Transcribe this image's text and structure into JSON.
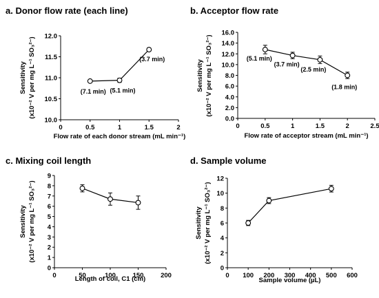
{
  "chart_data": [
    {
      "type": "line",
      "title": "a. Donor flow rate (each line)",
      "xlabel": "Flow rate of each donor stream (mL min⁻¹)",
      "ylabel": [
        "Sensitivity",
        "(x10⁻² V per mg L⁻¹ SO₃²⁻)"
      ],
      "xlim": [
        0,
        2
      ],
      "xticks": [
        0,
        0.5,
        1,
        1.5,
        2
      ],
      "xtick_labels": [
        "0",
        "0.5",
        "1",
        "1.5",
        "2"
      ],
      "ylim": [
        10.0,
        12.0
      ],
      "yticks": [
        10.0,
        10.5,
        11.0,
        11.5,
        12.0
      ],
      "ytick_labels": [
        "10.0",
        "10.5",
        "11.0",
        "11.5",
        "12.0"
      ],
      "grid": false,
      "series": [
        {
          "x": [
            0.5,
            1,
            1.5
          ],
          "y": [
            10.92,
            10.94,
            11.67
          ],
          "err": [
            0.02,
            0.05,
            0.04
          ],
          "labels": [
            "(7.1 min)",
            "(5.1 min)",
            "(3.7 min)"
          ]
        }
      ]
    },
    {
      "type": "line",
      "title": "b. Acceptor flow rate",
      "xlabel": "Flow rate of acceptor stream (mL min⁻¹)",
      "ylabel": [
        "Sensitivity",
        "(x10⁻² V per mg L⁻¹ SO₃²⁻)"
      ],
      "xlim": [
        0,
        2.5
      ],
      "xticks": [
        0,
        0.5,
        1,
        1.5,
        2,
        2.5
      ],
      "xtick_labels": [
        "0",
        "0.5",
        "1",
        "1.5",
        "2",
        "2.5"
      ],
      "ylim": [
        0,
        16
      ],
      "yticks": [
        0,
        2,
        4,
        6,
        8,
        10,
        12,
        14,
        16
      ],
      "ytick_labels": [
        "0.0",
        "2.0",
        "4.0",
        "6.0",
        "8.0",
        "10.0",
        "12.0",
        "14.0",
        "16.0"
      ],
      "grid": false,
      "series": [
        {
          "x": [
            0.5,
            1,
            1.5,
            2
          ],
          "y": [
            12.8,
            11.7,
            10.9,
            8.0
          ],
          "err": [
            0.8,
            0.6,
            0.7,
            0.6
          ],
          "labels": [
            "(5.1 min)",
            "(3.7 min)",
            "(2.5 min)",
            "(1.8 min)"
          ]
        }
      ]
    },
    {
      "type": "line",
      "title": "c. Mixing coil length",
      "xlabel": "Length of coil, C1 (cm)",
      "ylabel": [
        "Sensitivity",
        "(x10⁻² V per mg L⁻¹ SO₃²⁻)"
      ],
      "xlim": [
        0,
        200
      ],
      "xticks": [
        0,
        50,
        100,
        150,
        200
      ],
      "xtick_labels": [
        "0",
        "50",
        "100",
        "150",
        "200"
      ],
      "ylim": [
        0,
        9
      ],
      "yticks": [
        0,
        1,
        2,
        3,
        4,
        5,
        6,
        7,
        8,
        9
      ],
      "ytick_labels": [
        "0",
        "1",
        "2",
        "3",
        "4",
        "5",
        "6",
        "7",
        "8",
        "9"
      ],
      "grid": false,
      "series": [
        {
          "x": [
            50,
            100,
            150
          ],
          "y": [
            7.75,
            6.7,
            6.35
          ],
          "err": [
            0.35,
            0.6,
            0.65
          ]
        }
      ]
    },
    {
      "type": "line",
      "title": "d. Sample volume",
      "xlabel": "Sample volume (µL)",
      "ylabel": [
        "Sensitivity",
        "(x10⁻² V per mg L⁻¹ SO₃²⁻)"
      ],
      "xlim": [
        0,
        600
      ],
      "xticks": [
        0,
        100,
        200,
        300,
        400,
        500,
        600
      ],
      "xtick_labels": [
        "0",
        "100",
        "200",
        "300",
        "400",
        "500",
        "600"
      ],
      "ylim": [
        0,
        12
      ],
      "yticks": [
        0,
        2,
        4,
        6,
        8,
        10,
        12
      ],
      "ytick_labels": [
        "0",
        "2",
        "4",
        "6",
        "8",
        "10",
        "12"
      ],
      "grid": false,
      "series": [
        {
          "x": [
            100,
            200,
            500
          ],
          "y": [
            6.0,
            9.0,
            10.6
          ],
          "err": [
            0.35,
            0.4,
            0.45
          ]
        }
      ]
    }
  ]
}
